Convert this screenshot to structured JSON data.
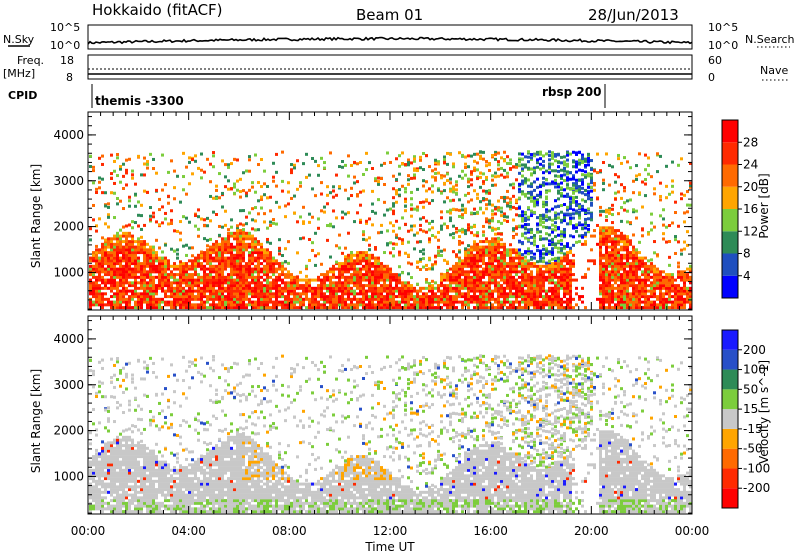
{
  "header": {
    "station": "Hokkaido (fitACF)",
    "beam": "Beam 01",
    "date": "28/Jun/2013"
  },
  "strips": {
    "nsky_label": "N.Sky",
    "nsky_ticks": [
      "10^5",
      "10^0"
    ],
    "nsearch_label": "N.Search",
    "nsearch_ticks": [
      "10^5",
      "10^0"
    ],
    "freq_label_1": "Freq.",
    "freq_label_2": "[MHz]",
    "freq_ticks": [
      "18",
      "8"
    ],
    "nave_label": "Nave",
    "nave_ticks": [
      "60",
      "0"
    ],
    "cpid_label": "CPID",
    "cpid_modes": [
      "themis -3300",
      "rbsp 200"
    ]
  },
  "chart_data": [
    {
      "type": "heatmap",
      "name": "power-panel",
      "ylabel": "Slant Range [km]",
      "ylim": [
        180,
        4500
      ],
      "yticks": [
        "1000",
        "2000",
        "3000",
        "4000"
      ],
      "xlim_hours": [
        0,
        24
      ],
      "colorbar_label": "Power [dB]",
      "colorbar_ticks": [
        "4",
        "8",
        "12",
        "16",
        "20",
        "24",
        "28"
      ],
      "colorbar_colors": [
        "#0000ff",
        "#1f4fbf",
        "#2e8b57",
        "#7ccd3c",
        "#ffa500",
        "#ff6a00",
        "#ff2a00",
        "#ff0000"
      ]
    },
    {
      "type": "heatmap",
      "name": "velocity-panel",
      "ylabel": "Velocity [m s^-1]",
      "ylabel_axis": "Slant Range [km]",
      "ylim": [
        180,
        4500
      ],
      "yticks": [
        "1000",
        "2000",
        "3000",
        "4000"
      ],
      "xlim_hours": [
        0,
        24
      ],
      "colorbar_ticks": [
        "200",
        "100",
        "50",
        "15",
        "-15",
        "-50",
        "-100",
        "-200"
      ],
      "colorbar_colors": [
        "#1a1aff",
        "#2850c8",
        "#2e8b57",
        "#7ccd3c",
        "#c8c8c8",
        "#ffa500",
        "#ff6a00",
        "#ff2a00",
        "#ff0000"
      ]
    }
  ],
  "xaxis": {
    "ticks": [
      "00:00",
      "04:00",
      "08:00",
      "12:00",
      "16:00",
      "20:00",
      "00:00"
    ],
    "label": "Time UT"
  }
}
